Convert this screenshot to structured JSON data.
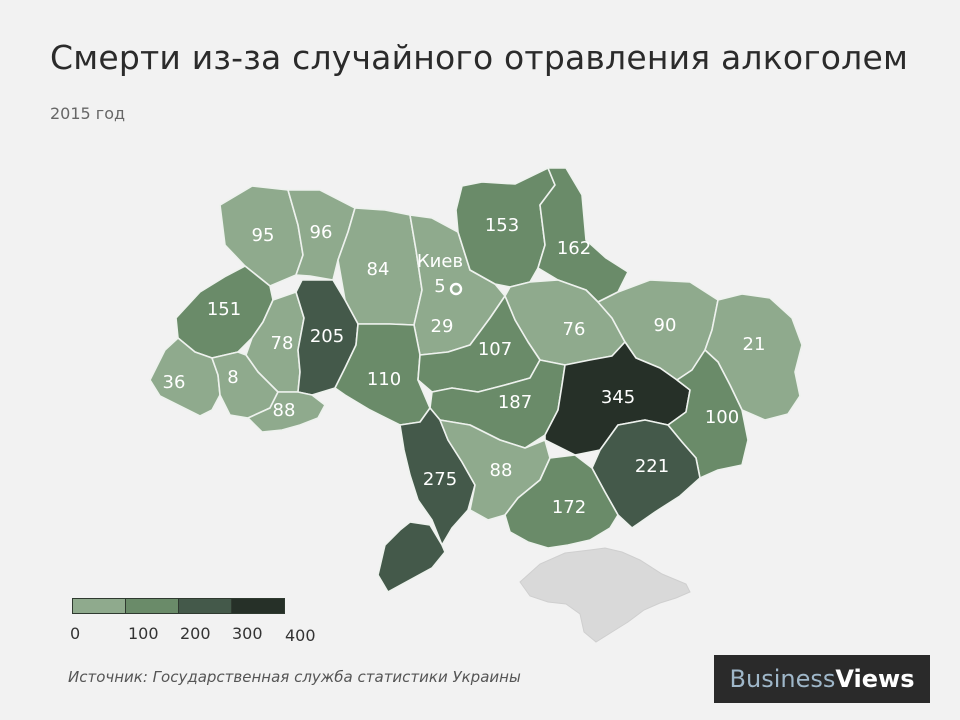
{
  "title": "Смерти из-за случайного отравления алкоголем",
  "subtitle": "2015 год",
  "colors": {
    "c1": "#8faa8d",
    "c2": "#6a8b69",
    "c3": "#44594a",
    "c4": "#263028",
    "crimea": "#d9d9d9"
  },
  "map": {
    "kyiv_label": "Киев",
    "kyiv_value": "5",
    "regions": [
      {
        "id": "volyn",
        "value": "95"
      },
      {
        "id": "rivne",
        "value": "96"
      },
      {
        "id": "zhytomyr",
        "value": "84"
      },
      {
        "id": "chernihiv",
        "value": "153"
      },
      {
        "id": "sumy",
        "value": "162"
      },
      {
        "id": "lviv",
        "value": "151"
      },
      {
        "id": "ternopil",
        "value": "78"
      },
      {
        "id": "khmelnytskyi",
        "value": "205"
      },
      {
        "id": "kyiv-oblast",
        "value": "29"
      },
      {
        "id": "poltava",
        "value": "76"
      },
      {
        "id": "kharkiv",
        "value": "90"
      },
      {
        "id": "luhansk",
        "value": "21"
      },
      {
        "id": "zakarpattia",
        "value": "36"
      },
      {
        "id": "ivano-frankivsk",
        "value": "8"
      },
      {
        "id": "chernivtsi",
        "value": "88"
      },
      {
        "id": "vinnytsia",
        "value": "110"
      },
      {
        "id": "cherkasy",
        "value": "107"
      },
      {
        "id": "kirovohrad",
        "value": "187"
      },
      {
        "id": "dnipropetrovsk",
        "value": "345"
      },
      {
        "id": "donetsk",
        "value": "100"
      },
      {
        "id": "odesa",
        "value": "275"
      },
      {
        "id": "mykolaiv",
        "value": "88"
      },
      {
        "id": "zaporizhzhia",
        "value": "221"
      },
      {
        "id": "kherson",
        "value": "172"
      }
    ]
  },
  "legend": {
    "ticks": [
      "0",
      "100",
      "200",
      "300",
      "400"
    ]
  },
  "source": "Источник: Государственная служба статистики Украины",
  "logo": {
    "part1": "Business",
    "part2": "Views"
  }
}
